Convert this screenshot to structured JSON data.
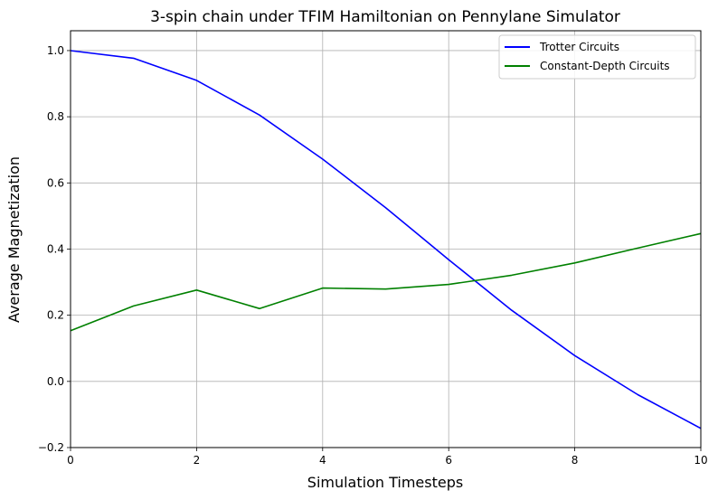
{
  "chart_data": {
    "type": "line",
    "title": "3-spin chain under TFIM Hamiltonian on Pennylane Simulator",
    "xlabel": "Simulation Timesteps",
    "ylabel": "Average Magnetization",
    "xlim": [
      0,
      10
    ],
    "ylim": [
      -0.2,
      1.06
    ],
    "x_ticks": [
      "0",
      "2",
      "4",
      "6",
      "8",
      "10"
    ],
    "y_ticks": [
      "−0.2",
      "0.0",
      "0.2",
      "0.4",
      "0.6",
      "0.8",
      "1.0"
    ],
    "grid": true,
    "legend_position": "top-right",
    "x": [
      0,
      1,
      2,
      3,
      4,
      5,
      6,
      7,
      8,
      9,
      10
    ],
    "series": [
      {
        "name": "Trotter Circuits",
        "color": "#0000ff",
        "values": [
          1.0,
          0.977,
          0.91,
          0.805,
          0.672,
          0.525,
          0.368,
          0.215,
          0.078,
          -0.04,
          -0.142
        ]
      },
      {
        "name": "Constant-Depth Circuits",
        "color": "#008000",
        "values": [
          0.153,
          0.228,
          0.276,
          0.22,
          0.282,
          0.279,
          0.293,
          0.321,
          0.358,
          0.403,
          0.447
        ]
      }
    ]
  }
}
